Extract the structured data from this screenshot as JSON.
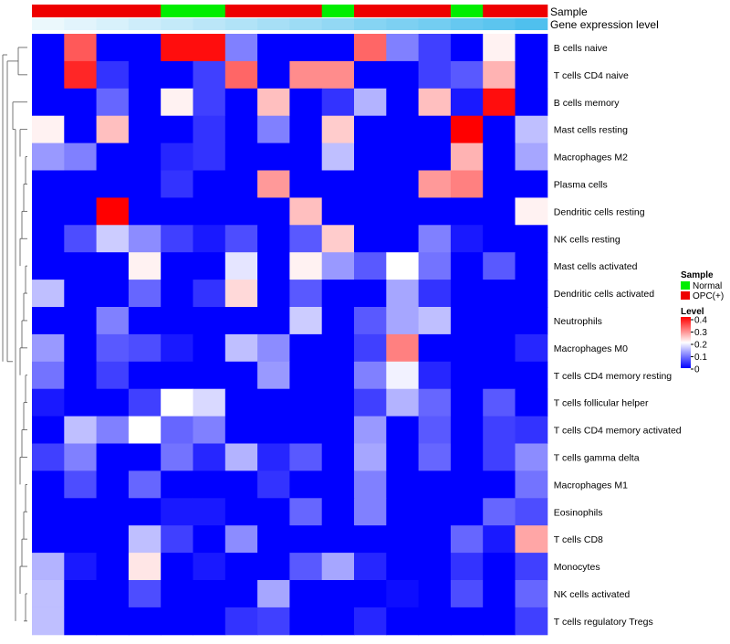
{
  "chart_data": {
    "type": "heatmap",
    "annotation_titles": {
      "sample": "Sample",
      "expression": "Gene expression level"
    },
    "columns": 16,
    "sample_groups": [
      "OPC(+)",
      "OPC(+)",
      "OPC(+)",
      "OPC(+)",
      "Normal",
      "Normal",
      "OPC(+)",
      "OPC(+)",
      "OPC(+)",
      "Normal",
      "OPC(+)",
      "OPC(+)",
      "OPC(+)",
      "Normal",
      "OPC(+)",
      "OPC(+)"
    ],
    "sample_colors": {
      "Normal": "#00ee00",
      "OPC(+)": "#ee0000"
    },
    "expression_levels": [
      0.02,
      0.05,
      0.08,
      0.11,
      0.14,
      0.17,
      0.2,
      0.23,
      0.26,
      0.29,
      0.33,
      0.36,
      0.39,
      0.43,
      0.46,
      0.5
    ],
    "expression_color_low": "#f2fafd",
    "expression_color_high": "#4fc0ee",
    "rows": [
      {
        "label": "B cells naive",
        "values": [
          0.0,
          0.33,
          0.0,
          0.0,
          0.39,
          0.39,
          0.1,
          0.0,
          0.0,
          0.0,
          0.32,
          0.1,
          0.05,
          0.0,
          0.21,
          0.0
        ]
      },
      {
        "label": "T cells CD4 naive",
        "values": [
          0.0,
          0.37,
          0.04,
          0.0,
          0.0,
          0.05,
          0.32,
          0.0,
          0.29,
          0.29,
          0.0,
          0.0,
          0.05,
          0.07,
          0.26,
          0.0
        ]
      },
      {
        "label": "B cells memory",
        "values": [
          0.0,
          0.0,
          0.08,
          0.0,
          0.21,
          0.05,
          0.0,
          0.25,
          0.0,
          0.04,
          0.14,
          0.0,
          0.25,
          0.02,
          0.39,
          0.0
        ]
      },
      {
        "label": "Mast cells resting",
        "values": [
          0.21,
          0.0,
          0.25,
          0.0,
          0.0,
          0.04,
          0.0,
          0.1,
          0.0,
          0.24,
          0.0,
          0.0,
          0.0,
          0.4,
          0.0,
          0.15
        ]
      },
      {
        "label": "Macrophages M2",
        "values": [
          0.12,
          0.1,
          0.0,
          0.0,
          0.03,
          0.04,
          0.0,
          0.0,
          0.0,
          0.15,
          0.0,
          0.0,
          0.0,
          0.26,
          0.0,
          0.13
        ]
      },
      {
        "label": "Plasma cells",
        "values": [
          0.0,
          0.0,
          0.0,
          0.0,
          0.04,
          0.0,
          0.0,
          0.28,
          0.0,
          0.0,
          0.0,
          0.0,
          0.28,
          0.3,
          0.0,
          0.0
        ]
      },
      {
        "label": "Dendritic cells resting",
        "values": [
          0.0,
          0.0,
          0.4,
          0.0,
          0.0,
          0.0,
          0.0,
          0.0,
          0.25,
          0.0,
          0.0,
          0.0,
          0.0,
          0.0,
          0.0,
          0.21
        ]
      },
      {
        "label": "NK cells resting",
        "values": [
          0.0,
          0.06,
          0.16,
          0.11,
          0.05,
          0.02,
          0.06,
          0.0,
          0.07,
          0.24,
          0.0,
          0.0,
          0.1,
          0.02,
          0.0,
          0.0
        ]
      },
      {
        "label": "Mast cells activated",
        "values": [
          0.0,
          0.0,
          0.0,
          0.21,
          0.0,
          0.0,
          0.18,
          0.0,
          0.21,
          0.12,
          0.07,
          0.2,
          0.09,
          0.0,
          0.07,
          0.0
        ]
      },
      {
        "label": "Dendritic cells activated",
        "values": [
          0.15,
          0.0,
          0.0,
          0.08,
          0.0,
          0.04,
          0.23,
          0.0,
          0.07,
          0.0,
          0.0,
          0.13,
          0.04,
          0.0,
          0.0,
          0.0
        ]
      },
      {
        "label": "Neutrophils",
        "values": [
          0.0,
          0.0,
          0.1,
          0.0,
          0.0,
          0.0,
          0.0,
          0.0,
          0.16,
          0.0,
          0.07,
          0.13,
          0.15,
          0.0,
          0.0,
          0.0
        ]
      },
      {
        "label": "Macrophages M0",
        "values": [
          0.12,
          0.0,
          0.07,
          0.06,
          0.02,
          0.0,
          0.15,
          0.11,
          0.0,
          0.0,
          0.05,
          0.3,
          0.0,
          0.0,
          0.0,
          0.03
        ]
      },
      {
        "label": "T cells CD4 memory resting",
        "values": [
          0.09,
          0.0,
          0.05,
          0.0,
          0.0,
          0.0,
          0.0,
          0.12,
          0.0,
          0.0,
          0.1,
          0.19,
          0.03,
          0.0,
          0.0,
          0.0
        ]
      },
      {
        "label": "T cells follicular helper",
        "values": [
          0.02,
          0.0,
          0.0,
          0.05,
          0.2,
          0.17,
          0.0,
          0.0,
          0.0,
          0.0,
          0.05,
          0.14,
          0.08,
          0.0,
          0.07,
          0.0
        ]
      },
      {
        "label": "T cells CD4 memory activated",
        "values": [
          0.0,
          0.15,
          0.1,
          0.2,
          0.08,
          0.1,
          0.0,
          0.0,
          0.0,
          0.0,
          0.12,
          0.0,
          0.07,
          0.0,
          0.05,
          0.04
        ]
      },
      {
        "label": "T cells gamma delta",
        "values": [
          0.05,
          0.1,
          0.0,
          0.0,
          0.09,
          0.03,
          0.14,
          0.03,
          0.07,
          0.0,
          0.13,
          0.0,
          0.08,
          0.0,
          0.05,
          0.11
        ]
      },
      {
        "label": "Macrophages M1",
        "values": [
          0.0,
          0.06,
          0.0,
          0.08,
          0.0,
          0.0,
          0.0,
          0.04,
          0.0,
          0.0,
          0.1,
          0.0,
          0.0,
          0.0,
          0.0,
          0.09
        ]
      },
      {
        "label": "Eosinophils",
        "values": [
          0.0,
          0.0,
          0.0,
          0.0,
          0.02,
          0.02,
          0.0,
          0.0,
          0.08,
          0.0,
          0.1,
          0.0,
          0.0,
          0.0,
          0.08,
          0.06
        ]
      },
      {
        "label": "T cells CD8",
        "values": [
          0.0,
          0.0,
          0.0,
          0.15,
          0.05,
          0.0,
          0.11,
          0.0,
          0.0,
          0.0,
          0.0,
          0.0,
          0.0,
          0.08,
          0.02,
          0.27
        ]
      },
      {
        "label": "Monocytes",
        "values": [
          0.14,
          0.02,
          0.0,
          0.22,
          0.0,
          0.02,
          0.0,
          0.0,
          0.07,
          0.13,
          0.03,
          0.0,
          0.0,
          0.04,
          0.0,
          0.05
        ]
      },
      {
        "label": "NK cells activated",
        "values": [
          0.15,
          0.0,
          0.0,
          0.06,
          0.0,
          0.0,
          0.0,
          0.13,
          0.0,
          0.0,
          0.0,
          0.01,
          0.0,
          0.06,
          0.0,
          0.08
        ]
      },
      {
        "label": "T cells regulatory  Tregs",
        "values": [
          0.15,
          0.0,
          0.0,
          0.0,
          0.0,
          0.0,
          0.04,
          0.05,
          0.0,
          0.0,
          0.03,
          0.0,
          0.0,
          0.0,
          0.0,
          0.05
        ]
      }
    ],
    "legend": {
      "sample_title": "Sample",
      "sample_entries": [
        "Normal",
        "OPC(+)"
      ],
      "level_title": "Level",
      "level_ticks": [
        "0.4",
        "0.3",
        "0.2",
        "0.1",
        "0"
      ],
      "range": [
        0,
        0.4
      ],
      "gradient_colors": [
        "#0000ff",
        "#ffffff",
        "#ff0000"
      ]
    },
    "dendrogram": "row-clustering"
  }
}
